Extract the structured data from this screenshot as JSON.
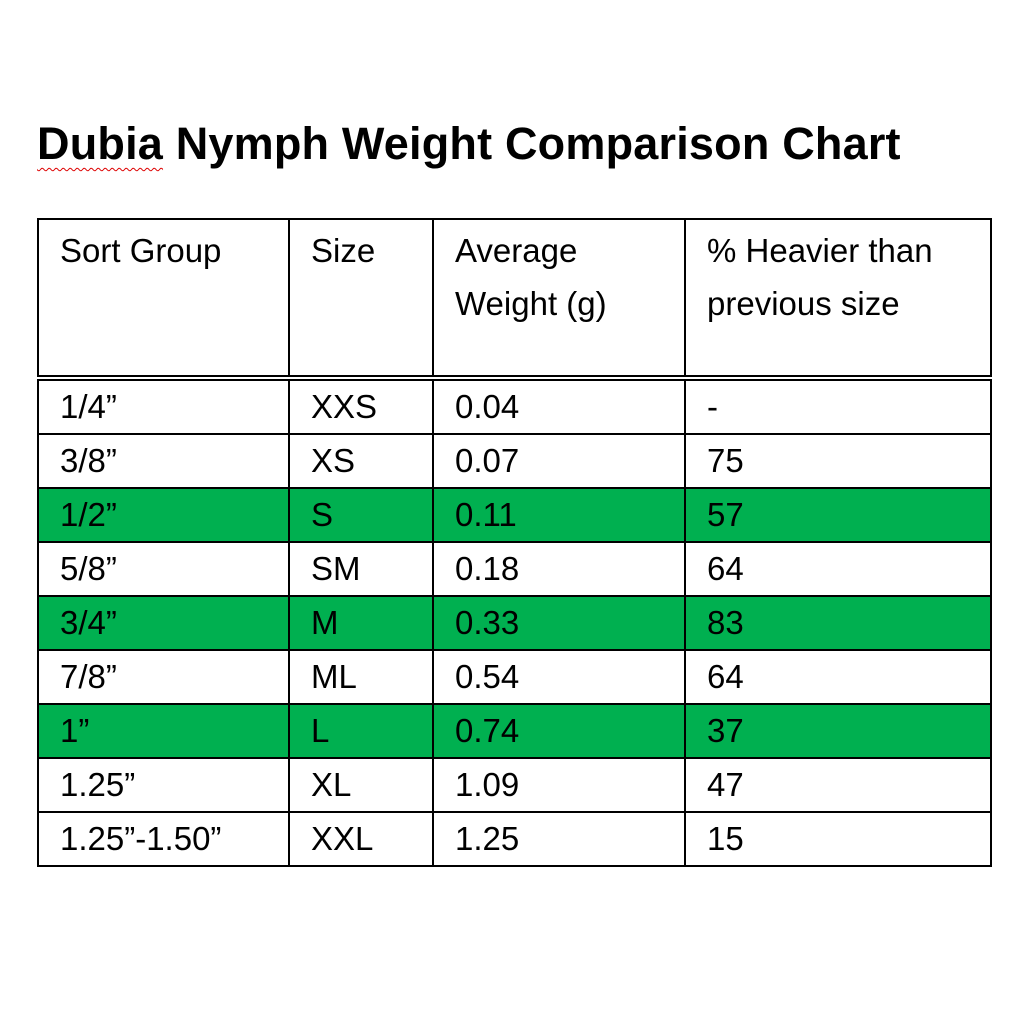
{
  "title_first_word": "Dubia",
  "title_rest": " Nymph Weight Comparison Chart",
  "colors": {
    "highlight": "#00b050"
  },
  "table": {
    "headers": [
      "Sort Group",
      "Size",
      "Average Weight (g)",
      "% Heavier than previous size"
    ],
    "rows": [
      {
        "group": "1/4”",
        "size": "XXS",
        "weight": "0.04",
        "pct": "-",
        "highlight": false
      },
      {
        "group": "3/8”",
        "size": "XS",
        "weight": "0.07",
        "pct": "75",
        "highlight": false
      },
      {
        "group": "1/2”",
        "size": "S",
        "weight": "0.11",
        "pct": "57",
        "highlight": true
      },
      {
        "group": "5/8”",
        "size": "SM",
        "weight": "0.18",
        "pct": "64",
        "highlight": false
      },
      {
        "group": "3/4”",
        "size": "M",
        "weight": "0.33",
        "pct": "83",
        "highlight": true
      },
      {
        "group": "7/8”",
        "size": "ML",
        "weight": "0.54",
        "pct": "64",
        "highlight": false
      },
      {
        "group": "1”",
        "size": "L",
        "weight": "0.74",
        "pct": "37",
        "highlight": true
      },
      {
        "group": "1.25”",
        "size": "XL",
        "weight": "1.09",
        "pct": "47",
        "highlight": false
      },
      {
        "group": "1.25”-1.50”",
        "size": "XXL",
        "weight": "1.25",
        "pct": "15",
        "highlight": false
      }
    ]
  }
}
